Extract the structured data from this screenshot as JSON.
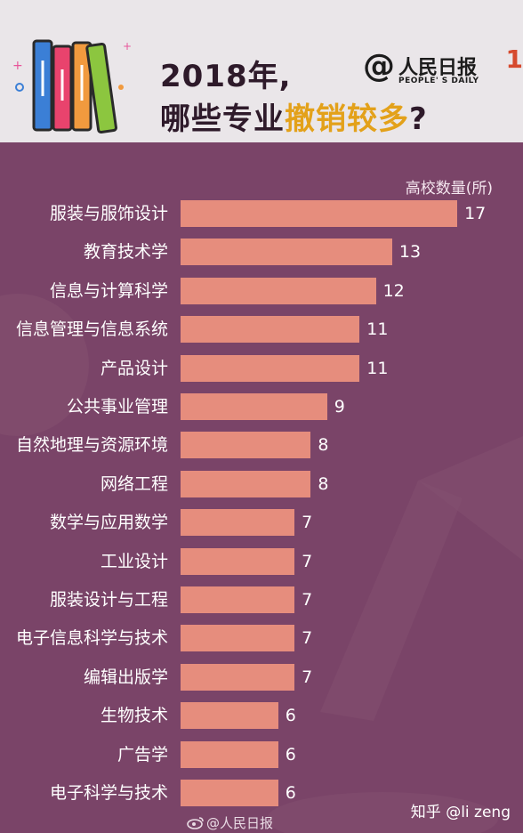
{
  "header": {
    "title_line1": "2018年,",
    "title_line2_prefix": "哪些专业",
    "title_line2_highlight": "撤销较多",
    "title_line2_suffix": "?",
    "logo_at": "@",
    "logo_cn": "人民日报",
    "logo_en": "PEOPLE' S DAILY",
    "corner_mark": "1"
  },
  "colors": {
    "background": "#7a4468",
    "header_bg": "#eae6e9",
    "bar": "#e68d7d",
    "highlight": "#e3a11a"
  },
  "icons": [
    "books-icon",
    "sparkle-icon",
    "weibo-icon"
  ],
  "footer": {
    "weibo": "@人民日报",
    "zhihu": "知乎 @li zeng"
  },
  "chart_data": {
    "type": "bar",
    "orientation": "horizontal",
    "unit_label": "高校数量(所)",
    "categories": [
      "服装与服饰设计",
      "教育技术学",
      "信息与计算科学",
      "信息管理与信息系统",
      "产品设计",
      "公共事业管理",
      "自然地理与资源环境",
      "网络工程",
      "数学与应用数学",
      "工业设计",
      "服装设计与工程",
      "电子信息科学与技术",
      "编辑出版学",
      "生物技术",
      "广告学",
      "电子科学与技术"
    ],
    "values": [
      17,
      13,
      12,
      11,
      11,
      9,
      8,
      8,
      7,
      7,
      7,
      7,
      7,
      6,
      6,
      6
    ],
    "xlim": [
      0,
      17
    ],
    "grid": false,
    "legend": "none"
  }
}
